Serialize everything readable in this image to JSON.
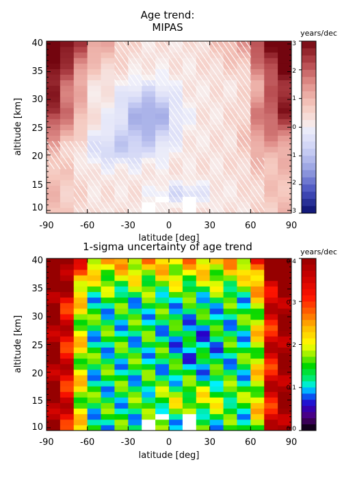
{
  "chart_data": [
    {
      "type": "heatmap",
      "title": "Age trend:",
      "subtitle": "MIPAS",
      "xlabel": "latitude [deg]",
      "ylabel": "altitude [km]",
      "xlim": [
        -90,
        90
      ],
      "ylim": [
        9.5,
        40.5
      ],
      "xticks": [
        "-90",
        "-60",
        "-30",
        "0",
        "30",
        "60",
        "90"
      ],
      "yticks": [
        "10",
        "15",
        "20",
        "25",
        "30",
        "35",
        "40"
      ],
      "x_bin_width_deg": 10,
      "colorbar": {
        "label": "years/dec",
        "min": -3,
        "max": 3,
        "ticks": [
          "3",
          "2",
          "1",
          "0",
          "-1",
          "-2",
          "-3"
        ],
        "colormap": "blue-white-red diverging"
      },
      "hatching": "white diagonal hatching marks non-significant trends",
      "description": "Trend in mean age of air, 10-40 km, 90S-90N; positive (red) at high latitudes and upper levels, negative (blue) in the tropical/subtropical middle stratosphere"
    },
    {
      "type": "heatmap",
      "title": "1-sigma uncertainty of age trend",
      "xlabel": "latitude [deg]",
      "ylabel": "altitude [km]",
      "xlim": [
        -90,
        90
      ],
      "ylim": [
        9.5,
        40.5
      ],
      "xticks": [
        "-90",
        "-60",
        "-30",
        "0",
        "30",
        "60",
        "90"
      ],
      "yticks": [
        "10",
        "15",
        "20",
        "25",
        "30",
        "35",
        "40"
      ],
      "colorbar": {
        "label": "years/dec",
        "min": 0.0,
        "max": 0.4,
        "ticks": [
          "0.4",
          "0.3",
          "0.2",
          "0.1",
          "0.0"
        ],
        "colormap": "rainbow"
      },
      "description": "Uncertainty largest near the poles and at the top (~0.4), smallest in the tropical middle stratosphere (~0.1)"
    }
  ]
}
